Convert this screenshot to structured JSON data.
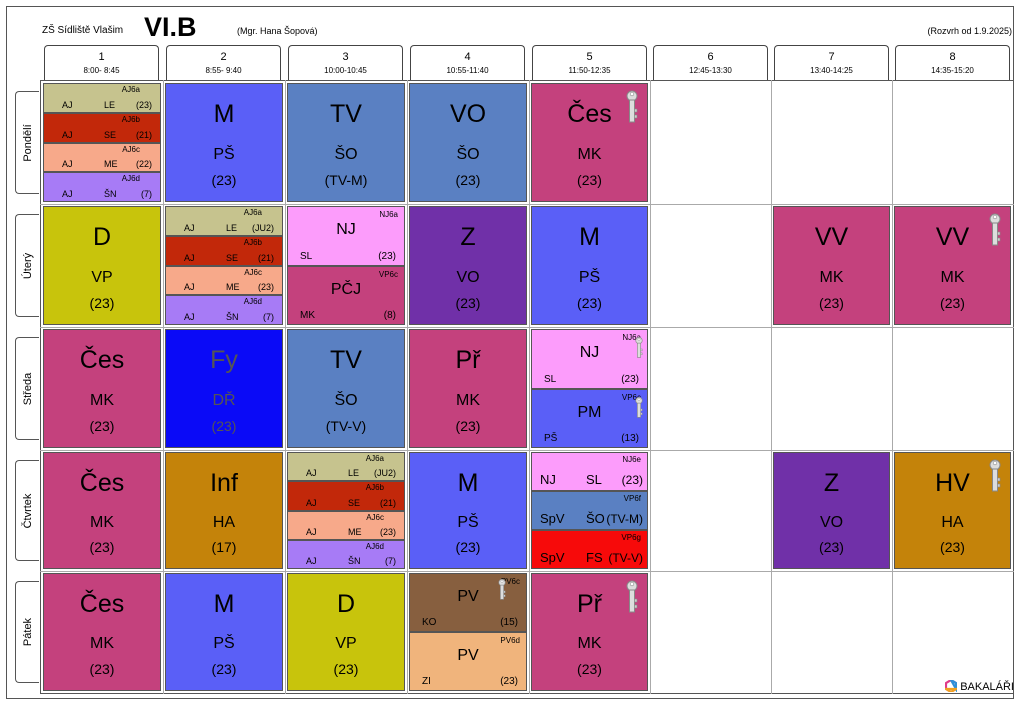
{
  "header": {
    "school": "ZŠ Sídliště Vlašim",
    "class": "VI.B",
    "teacher": "(Mgr. Hana Šopová)",
    "validity": "(Rozvrh od 1.9.2025)"
  },
  "periods": [
    {
      "num": "1",
      "time": "8:00- 8:45"
    },
    {
      "num": "2",
      "time": "8:55- 9:40"
    },
    {
      "num": "3",
      "time": "10:00-10:45"
    },
    {
      "num": "4",
      "time": "10:55-11:40"
    },
    {
      "num": "5",
      "time": "11:50-12:35"
    },
    {
      "num": "6",
      "time": "12:45-13:30"
    },
    {
      "num": "7",
      "time": "13:40-14:25"
    },
    {
      "num": "8",
      "time": "14:35-15:20"
    }
  ],
  "days": [
    "Pondělí",
    "Úterý",
    "Středa",
    "Čtvrtek",
    "Pátek"
  ],
  "lessons": [
    {
      "day": 0,
      "period": 0,
      "layout": "quad",
      "parts": [
        {
          "group": "AJ6a",
          "subject": "AJ",
          "teacher": "LE",
          "room": "(23)",
          "color": "#c6c38e"
        },
        {
          "group": "AJ6b",
          "subject": "AJ",
          "teacher": "SE",
          "room": "(21)",
          "color": "#c2280a"
        },
        {
          "group": "AJ6c",
          "subject": "AJ",
          "teacher": "ME",
          "room": "(22)",
          "color": "#f7a98a"
        },
        {
          "group": "AJ6d",
          "subject": "AJ",
          "teacher": "ŠN",
          "room": "(7)",
          "color": "#a77bf6"
        }
      ]
    },
    {
      "day": 0,
      "period": 1,
      "layout": "full",
      "parts": [
        {
          "subject": "M",
          "teacher": "PŠ",
          "room": "(23)",
          "color": "#5a5ff7"
        }
      ]
    },
    {
      "day": 0,
      "period": 2,
      "layout": "full",
      "parts": [
        {
          "subject": "TV",
          "teacher": "ŠO",
          "room": "(TV-M)",
          "color": "#5a80c2"
        }
      ]
    },
    {
      "day": 0,
      "period": 3,
      "layout": "full",
      "parts": [
        {
          "subject": "VO",
          "teacher": "ŠO",
          "room": "(23)",
          "color": "#5a80c2"
        }
      ]
    },
    {
      "day": 0,
      "period": 4,
      "layout": "full",
      "key": true,
      "parts": [
        {
          "subject": "Čes",
          "teacher": "MK",
          "room": "(23)",
          "color": "#c4417d"
        }
      ]
    },
    {
      "day": 1,
      "period": 0,
      "layout": "full",
      "parts": [
        {
          "subject": "D",
          "teacher": "VP",
          "room": "(23)",
          "color": "#c8c40c"
        }
      ]
    },
    {
      "day": 1,
      "period": 1,
      "layout": "quad",
      "parts": [
        {
          "group": "AJ6a",
          "subject": "AJ",
          "teacher": "LE",
          "room": "(JU2)",
          "color": "#c6c38e"
        },
        {
          "group": "AJ6b",
          "subject": "AJ",
          "teacher": "SE",
          "room": "(21)",
          "color": "#c2280a"
        },
        {
          "group": "AJ6c",
          "subject": "AJ",
          "teacher": "ME",
          "room": "(23)",
          "color": "#f7a98a"
        },
        {
          "group": "AJ6d",
          "subject": "AJ",
          "teacher": "ŠN",
          "room": "(7)",
          "color": "#a77bf6"
        }
      ]
    },
    {
      "day": 1,
      "period": 2,
      "layout": "half",
      "parts": [
        {
          "group": "NJ6a",
          "subject": "NJ",
          "teacher": "SL",
          "room": "(23)",
          "color": "#fc9cfb"
        },
        {
          "group": "VP6c",
          "subject": "PČJ",
          "teacher": "MK",
          "room": "(8)",
          "color": "#c4417d"
        }
      ]
    },
    {
      "day": 1,
      "period": 3,
      "layout": "full",
      "parts": [
        {
          "subject": "Z",
          "teacher": "VO",
          "room": "(23)",
          "color": "#7030a8"
        }
      ]
    },
    {
      "day": 1,
      "period": 4,
      "layout": "full",
      "parts": [
        {
          "subject": "M",
          "teacher": "PŠ",
          "room": "(23)",
          "color": "#5a5ff7"
        }
      ]
    },
    {
      "day": 1,
      "period": 6,
      "layout": "full",
      "parts": [
        {
          "subject": "VV",
          "teacher": "MK",
          "room": "(23)",
          "color": "#c4417d"
        }
      ]
    },
    {
      "day": 1,
      "period": 7,
      "layout": "full",
      "key": true,
      "parts": [
        {
          "subject": "VV",
          "teacher": "MK",
          "room": "(23)",
          "color": "#c4417d"
        }
      ]
    },
    {
      "day": 2,
      "period": 0,
      "layout": "full",
      "parts": [
        {
          "subject": "Čes",
          "teacher": "MK",
          "room": "(23)",
          "color": "#c4417d"
        }
      ]
    },
    {
      "day": 2,
      "period": 1,
      "layout": "full",
      "parts": [
        {
          "subject": "Fy",
          "teacher": "DŘ",
          "room": "(23)",
          "color": "#0a0af7"
        }
      ]
    },
    {
      "day": 2,
      "period": 2,
      "layout": "full",
      "parts": [
        {
          "subject": "TV",
          "teacher": "ŠO",
          "room": "(TV-V)",
          "color": "#5a80c2"
        }
      ]
    },
    {
      "day": 2,
      "period": 3,
      "layout": "full",
      "parts": [
        {
          "subject": "Př",
          "teacher": "MK",
          "room": "(23)",
          "color": "#c4417d"
        }
      ]
    },
    {
      "day": 2,
      "period": 4,
      "layout": "half",
      "key2": true,
      "parts": [
        {
          "group": "NJ6a",
          "subject": "NJ",
          "teacher": "SL",
          "room": "(23)",
          "color": "#fc9cfb"
        },
        {
          "group": "VP6c",
          "subject": "PM",
          "teacher": "PŠ",
          "room": "(13)",
          "color": "#5a5ff7"
        }
      ]
    },
    {
      "day": 3,
      "period": 0,
      "layout": "full",
      "parts": [
        {
          "subject": "Čes",
          "teacher": "MK",
          "room": "(23)",
          "color": "#c4417d"
        }
      ]
    },
    {
      "day": 3,
      "period": 1,
      "layout": "full",
      "parts": [
        {
          "subject": "Inf",
          "teacher": "HA",
          "room": "(17)",
          "color": "#c4830a"
        }
      ]
    },
    {
      "day": 3,
      "period": 2,
      "layout": "quad",
      "parts": [
        {
          "group": "AJ6a",
          "subject": "AJ",
          "teacher": "LE",
          "room": "(JU2)",
          "color": "#c6c38e"
        },
        {
          "group": "AJ6b",
          "subject": "AJ",
          "teacher": "SE",
          "room": "(21)",
          "color": "#c2280a"
        },
        {
          "group": "AJ6c",
          "subject": "AJ",
          "teacher": "ME",
          "room": "(23)",
          "color": "#f7a98a"
        },
        {
          "group": "AJ6d",
          "subject": "AJ",
          "teacher": "ŠN",
          "room": "(7)",
          "color": "#a77bf6"
        }
      ]
    },
    {
      "day": 3,
      "period": 3,
      "layout": "full",
      "parts": [
        {
          "subject": "M",
          "teacher": "PŠ",
          "room": "(23)",
          "color": "#5a5ff7"
        }
      ]
    },
    {
      "day": 3,
      "period": 4,
      "layout": "inline",
      "parts": [
        {
          "group": "NJ6e",
          "subject": "NJ",
          "teacher": "SL",
          "room": "(23)",
          "color": "#fc9cfb"
        },
        {
          "group": "VP6f",
          "subject": "SpV",
          "teacher": "ŠO",
          "room": "(TV-M)",
          "color": "#5a80c2"
        },
        {
          "group": "VP6g",
          "subject": "SpV",
          "teacher": "FS",
          "room": "(TV-V)",
          "color": "#f70a0a"
        }
      ]
    },
    {
      "day": 3,
      "period": 6,
      "layout": "full",
      "parts": [
        {
          "subject": "Z",
          "teacher": "VO",
          "room": "(23)",
          "color": "#7030a8"
        }
      ]
    },
    {
      "day": 3,
      "period": 7,
      "layout": "full",
      "key": true,
      "parts": [
        {
          "subject": "HV",
          "teacher": "HA",
          "room": "(23)",
          "color": "#c4830a"
        }
      ]
    },
    {
      "day": 4,
      "period": 0,
      "layout": "full",
      "parts": [
        {
          "subject": "Čes",
          "teacher": "MK",
          "room": "(23)",
          "color": "#c4417d"
        }
      ]
    },
    {
      "day": 4,
      "period": 1,
      "layout": "full",
      "parts": [
        {
          "subject": "M",
          "teacher": "PŠ",
          "room": "(23)",
          "color": "#5a5ff7"
        }
      ]
    },
    {
      "day": 4,
      "period": 2,
      "layout": "full",
      "parts": [
        {
          "subject": "D",
          "teacher": "VP",
          "room": "(23)",
          "color": "#c8c40c"
        }
      ]
    },
    {
      "day": 4,
      "period": 3,
      "layout": "half",
      "key1": true,
      "parts": [
        {
          "group": "PV6c",
          "subject": "PV",
          "teacher": "KO",
          "room": "(15)",
          "color": "#875f3f"
        },
        {
          "group": "PV6d",
          "subject": "PV",
          "teacher": "ZI",
          "room": "(23)",
          "color": "#f0b47c"
        }
      ]
    },
    {
      "day": 4,
      "period": 4,
      "layout": "full",
      "key": true,
      "parts": [
        {
          "subject": "Př",
          "teacher": "MK",
          "room": "(23)",
          "color": "#c4417d"
        }
      ]
    }
  ],
  "footer": {
    "logo": "BAKALÁŘI"
  }
}
